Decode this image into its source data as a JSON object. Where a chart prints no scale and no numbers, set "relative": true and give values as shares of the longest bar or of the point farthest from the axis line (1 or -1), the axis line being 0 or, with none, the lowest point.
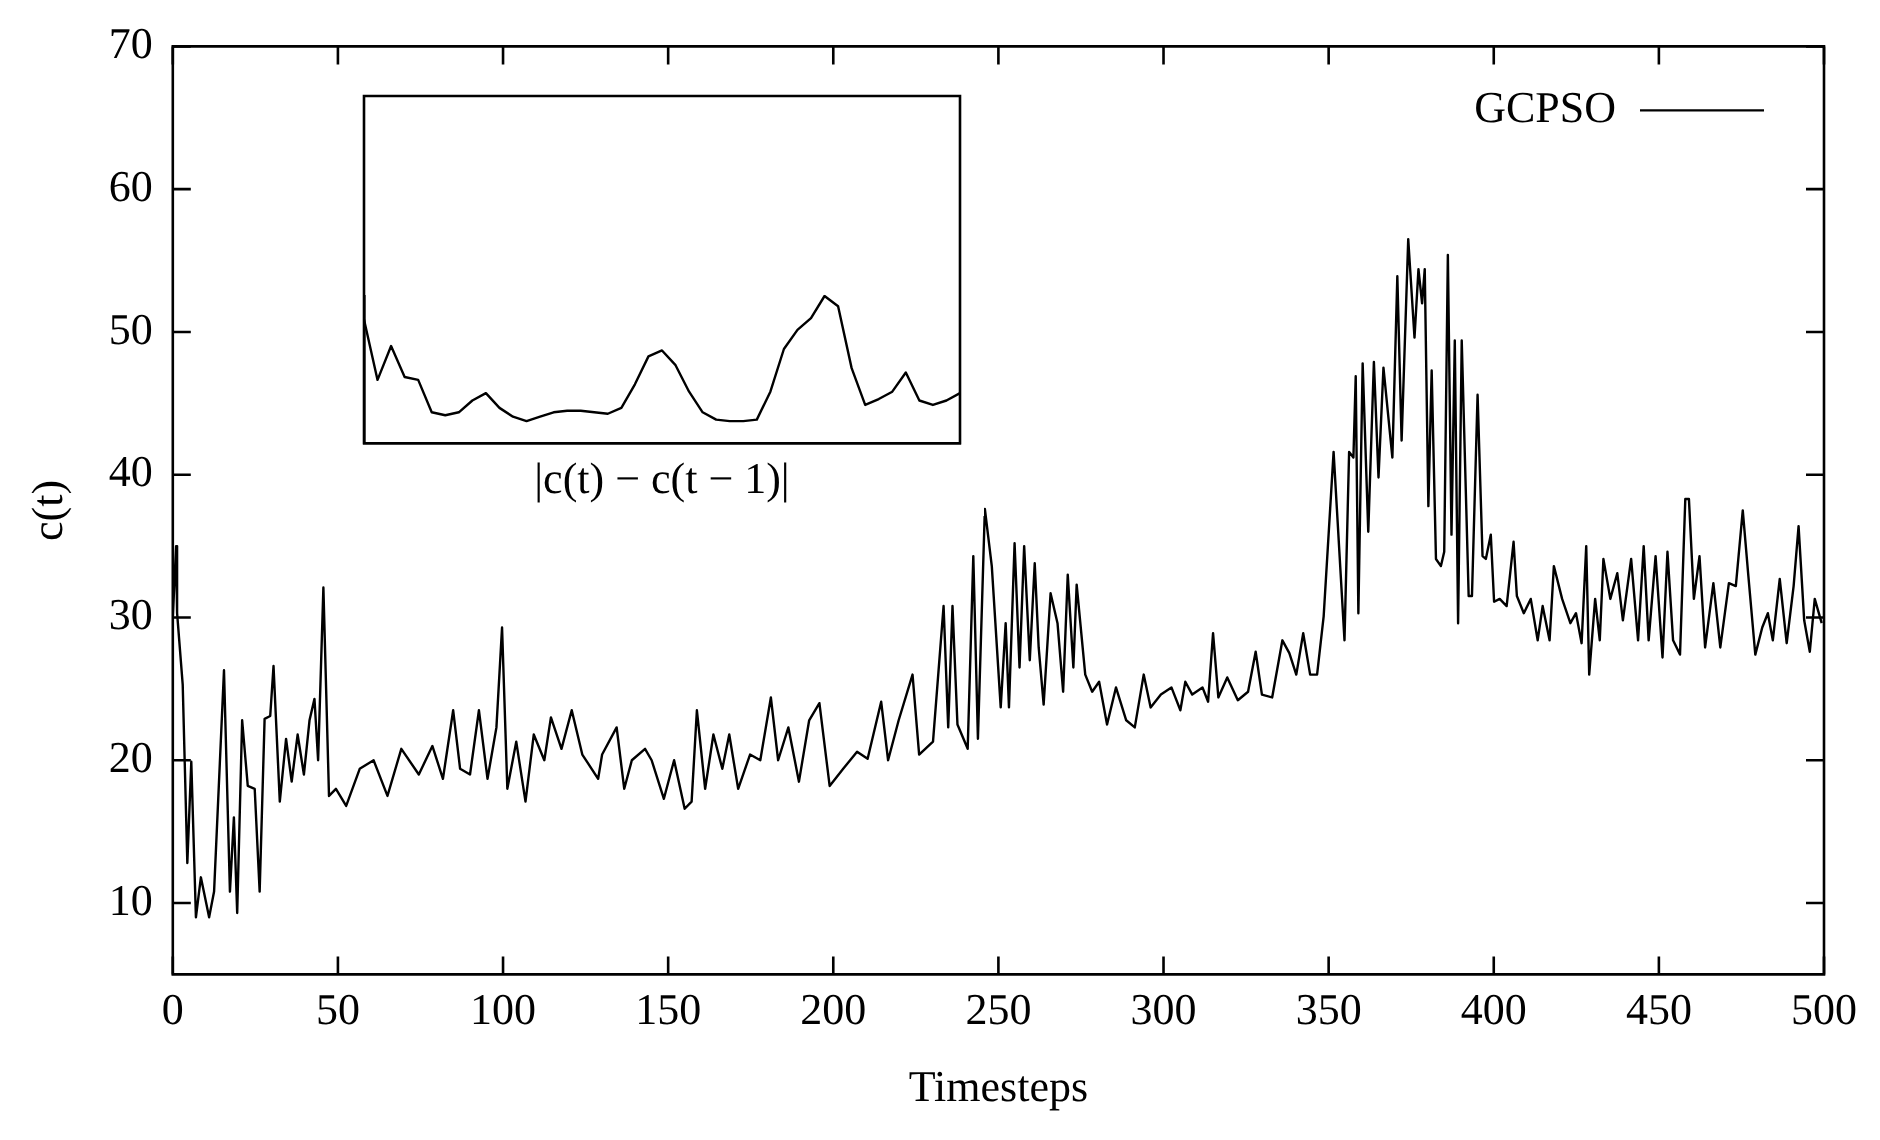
{
  "chart_data": [
    {
      "type": "line",
      "xlabel": "Timesteps",
      "ylabel": "c(t)",
      "legend": "top right",
      "xlim": [
        0,
        500
      ],
      "ylim": [
        5,
        70
      ],
      "xticks": [
        0,
        50,
        100,
        150,
        200,
        250,
        300,
        350,
        400,
        450,
        500
      ],
      "yticks": [
        10,
        20,
        30,
        40,
        50,
        60,
        70
      ],
      "series": [
        {
          "name": "GCPSO",
          "color": "#000000",
          "x": [
            0,
            1,
            1.3,
            3,
            4.4,
            5.6,
            7,
            8.5,
            11,
            12.5,
            15.5,
            17.3,
            18.5,
            19.5,
            21,
            22.7,
            24.8,
            26.3,
            27.8,
            29.5,
            30.5,
            32.4,
            34.3,
            36,
            37.8,
            39.7,
            41.4,
            42.9,
            44,
            45.6,
            47.3,
            49.4,
            52.5,
            56.6,
            60.8,
            65,
            69.2,
            74.5,
            78.6,
            81.8,
            84.9,
            87,
            90,
            92.7,
            95.3,
            98,
            99.7,
            101.3,
            104,
            106.8,
            109.3,
            112.5,
            114.5,
            117.7,
            120.8,
            124,
            128.8,
            130,
            134.4,
            136.7,
            139,
            143,
            145,
            148.7,
            151.8,
            155,
            157.1,
            158.7,
            161.2,
            163.7,
            166.4,
            168.5,
            171.2,
            174.8,
            177.9,
            181.1,
            183.3,
            186.4,
            189.6,
            192.7,
            195.8,
            198.9,
            203,
            207.2,
            210.4,
            214.5,
            216.6,
            219.8,
            224,
            226,
            230.2,
            233.4,
            234.8,
            236.1,
            237.6,
            240.7,
            242.4,
            243.8,
            245.9,
            248,
            250.7,
            252.2,
            253.2,
            254.9,
            256.4,
            257.8,
            259.5,
            261,
            262.2,
            263.7,
            265.8,
            267.9,
            269.6,
            271,
            272.7,
            273.7,
            276.3,
            278.4,
            280.5,
            282.9,
            285.6,
            288.7,
            291.3,
            294,
            296.1,
            299.2,
            302.4,
            305.1,
            306.6,
            308.7,
            311.8,
            313.5,
            315,
            316.6,
            319.3,
            322.5,
            325.6,
            327.9,
            329.8,
            332.9,
            336,
            338.1,
            340.2,
            342.3,
            344.4,
            346.5,
            348.5,
            351.5,
            354.8,
            356.2,
            357.5,
            358.2,
            359,
            360.3,
            362,
            363.7,
            365.1,
            366.6,
            369.3,
            370.8,
            372.1,
            374.1,
            376,
            377.2,
            378.3,
            379.1,
            380.2,
            381.2,
            382.5,
            384,
            385,
            386.1,
            387.2,
            388.2,
            389.2,
            390.3,
            392.4,
            393.4,
            395.1,
            396.6,
            397.6,
            399.1,
            400.1,
            401.8,
            403.9,
            406,
            407,
            409.1,
            411.2,
            413.3,
            414.8,
            416.9,
            418.2,
            420.7,
            423.2,
            424.9,
            426.6,
            428,
            428.9,
            430.7,
            432.1,
            433.2,
            435.3,
            437.4,
            439.1,
            441.6,
            443.7,
            445.4,
            446.9,
            449,
            451.1,
            452.6,
            454.3,
            456.4,
            458,
            459.1,
            460.6,
            462.3,
            464,
            466.5,
            468.6,
            471.2,
            473.3,
            475.4,
            477.1,
            479.2,
            481.3,
            483,
            484.5,
            486.6,
            488.7,
            490.8,
            492.3,
            494,
            495.7,
            497.2,
            499.3
          ],
          "values": [
            30,
            35,
            30.3,
            25.3,
            12.8,
            19.9,
            9,
            11.8,
            9,
            10.8,
            26.3,
            10.8,
            16,
            9.3,
            22.8,
            18.2,
            18,
            10.8,
            22.9,
            23.1,
            26.6,
            17.1,
            21.5,
            18.5,
            21.8,
            19,
            22.8,
            24.3,
            20,
            32.1,
            17.5,
            18,
            16.8,
            19.4,
            20,
            17.5,
            20.8,
            19,
            21,
            18.7,
            23.5,
            19.4,
            19,
            23.5,
            18.7,
            22.3,
            29.3,
            18,
            21.3,
            17.1,
            21.8,
            20,
            23,
            20.8,
            23.5,
            20.4,
            18.7,
            20.4,
            22.3,
            18,
            20,
            20.8,
            20,
            17.3,
            20,
            16.6,
            17.1,
            23.5,
            18,
            21.8,
            19.4,
            21.8,
            18,
            20.4,
            20,
            24.4,
            20,
            22.3,
            18.5,
            22.8,
            24,
            18.2,
            19.4,
            20.6,
            20.1,
            24.1,
            20,
            22.8,
            26,
            20.4,
            21.3,
            30.8,
            22.3,
            30.8,
            22.5,
            20.8,
            34.3,
            21.5,
            37.6,
            33.6,
            23.7,
            29.6,
            23.7,
            35.2,
            26.5,
            35,
            27,
            33.8,
            27.9,
            23.9,
            31.7,
            29.6,
            24.8,
            33,
            26.5,
            32.3,
            26,
            24.8,
            25.5,
            22.5,
            25.1,
            22.8,
            22.3,
            26,
            23.7,
            24.6,
            25.1,
            23.5,
            25.5,
            24.6,
            25.1,
            24.1,
            28.9,
            24.4,
            25.8,
            24.2,
            24.8,
            27.6,
            24.6,
            24.4,
            28.4,
            27.5,
            26,
            28.9,
            26,
            26,
            30.1,
            41.6,
            28.4,
            41.6,
            41.2,
            46.9,
            30.3,
            47.8,
            36,
            47.9,
            39.8,
            47.5,
            41.2,
            53.9,
            42.4,
            56.5,
            49.6,
            54.4,
            52,
            54.4,
            37.8,
            47.3,
            34.1,
            33.6,
            34.6,
            55.4,
            35.8,
            49.4,
            29.6,
            49.4,
            31.5,
            31.5,
            45.6,
            34.3,
            34.1,
            35.8,
            31.1,
            31.3,
            30.8,
            35.3,
            31.5,
            30.3,
            31.3,
            28.4,
            30.8,
            28.4,
            33.6,
            31.3,
            29.6,
            30.3,
            28.2,
            35,
            26,
            31.3,
            28.4,
            34.1,
            31.3,
            33.1,
            29.8,
            34.1,
            28.4,
            35,
            28.4,
            34.3,
            27.2,
            34.6,
            28.4,
            27.4,
            38.3,
            38.3,
            31.3,
            34.3,
            27.9,
            32.4,
            27.9,
            32.4,
            32.2,
            37.5,
            32.9,
            27.4,
            29.3,
            30.3,
            28.4,
            32.7,
            28.2,
            32.2,
            36.4,
            29.8,
            27.6,
            31.3,
            29.6
          ]
        }
      ]
    },
    {
      "type": "line",
      "xlabel": "|c(t) − c(t − 1)|",
      "relative": true,
      "categories": [
        null,
        null,
        null,
        null,
        null,
        null,
        null,
        null,
        null,
        null,
        null,
        null,
        null,
        null,
        null,
        null,
        null,
        null,
        null,
        null,
        null,
        null,
        null,
        null,
        null,
        null,
        null,
        null,
        null,
        null,
        null,
        null,
        null,
        null,
        null,
        null,
        null,
        null,
        null,
        null,
        null,
        null,
        null,
        null,
        null
      ],
      "series": [
        {
          "color": "#000000",
          "values": [
            0.84,
            0.43,
            0.66,
            0.45,
            0.43,
            0.21,
            0.19,
            0.21,
            0.29,
            0.34,
            0.24,
            0.18,
            0.15,
            0.18,
            0.21,
            0.22,
            0.22,
            0.21,
            0.2,
            0.24,
            0.4,
            0.59,
            0.63,
            0.53,
            0.35,
            0.21,
            0.16,
            0.15,
            0.15,
            0.16,
            0.35,
            0.64,
            0.77,
            0.85,
            1,
            0.93,
            0.51,
            0.26,
            0.3,
            0.35,
            0.48,
            0.29,
            0.26,
            0.29,
            0.34
          ]
        }
      ]
    }
  ]
}
